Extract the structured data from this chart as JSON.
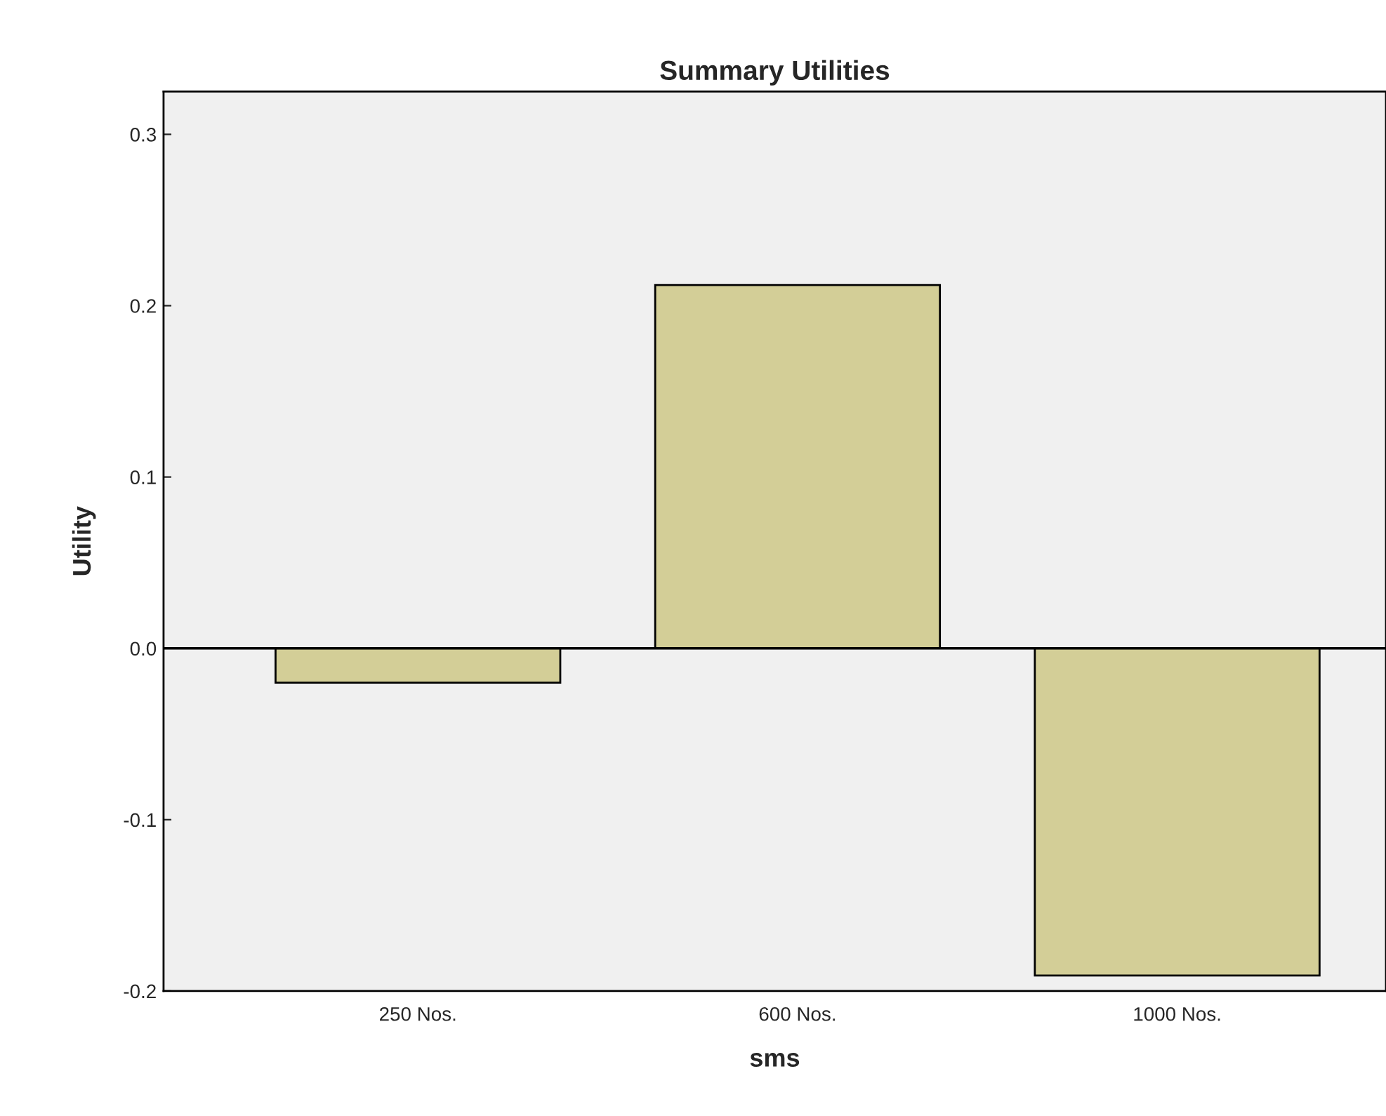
{
  "chart_data": {
    "type": "bar",
    "title": "Summary Utilities",
    "xlabel": "sms",
    "ylabel": "Utility",
    "categories": [
      "250 Nos.",
      "600 Nos.",
      "1000 Nos."
    ],
    "values": [
      -0.02,
      0.212,
      -0.191
    ],
    "color": "#d3ce97",
    "ylim": [
      -0.2,
      0.325
    ],
    "yticks": [
      {
        "value": -0.2,
        "label": "-0.2"
      },
      {
        "value": -0.1,
        "label": "-0.1"
      },
      {
        "value": 0.0,
        "label": "0.0"
      },
      {
        "value": 0.1,
        "label": "0.1"
      },
      {
        "value": 0.2,
        "label": "0.2"
      },
      {
        "value": 0.3,
        "label": "0.3"
      }
    ],
    "ref_lines": [
      {
        "axis": "y",
        "value": 0,
        "color": "#000000"
      }
    ],
    "grid": false,
    "legend": false
  }
}
